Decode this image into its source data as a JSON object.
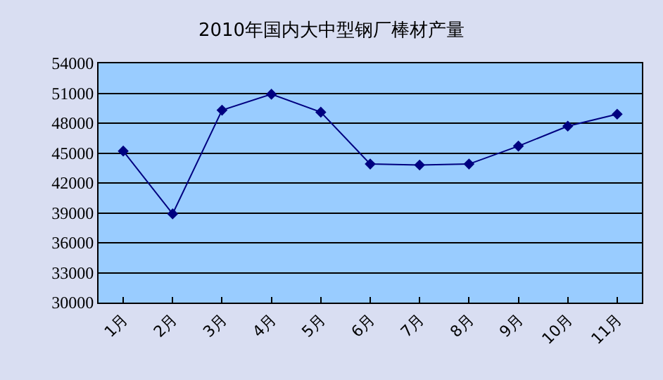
{
  "chart_data": {
    "type": "line",
    "title": "2010年国内大中型钢厂棒材产量",
    "categories": [
      "1月",
      "2月",
      "3月",
      "4月",
      "5月",
      "6月",
      "7月",
      "8月",
      "9月",
      "10月",
      "11月"
    ],
    "series": [
      {
        "color": "#000080",
        "values": [
          45200,
          38900,
          49300,
          50900,
          49100,
          43900,
          43800,
          43900,
          45700,
          47700,
          48900
        ]
      }
    ],
    "ylim": [
      30000,
      54000
    ],
    "yticks": [
      30000,
      33000,
      36000,
      39000,
      42000,
      45000,
      48000,
      51000,
      54000
    ],
    "grid": "y",
    "legend": false,
    "marker": "diamond",
    "line_style": "solid"
  }
}
